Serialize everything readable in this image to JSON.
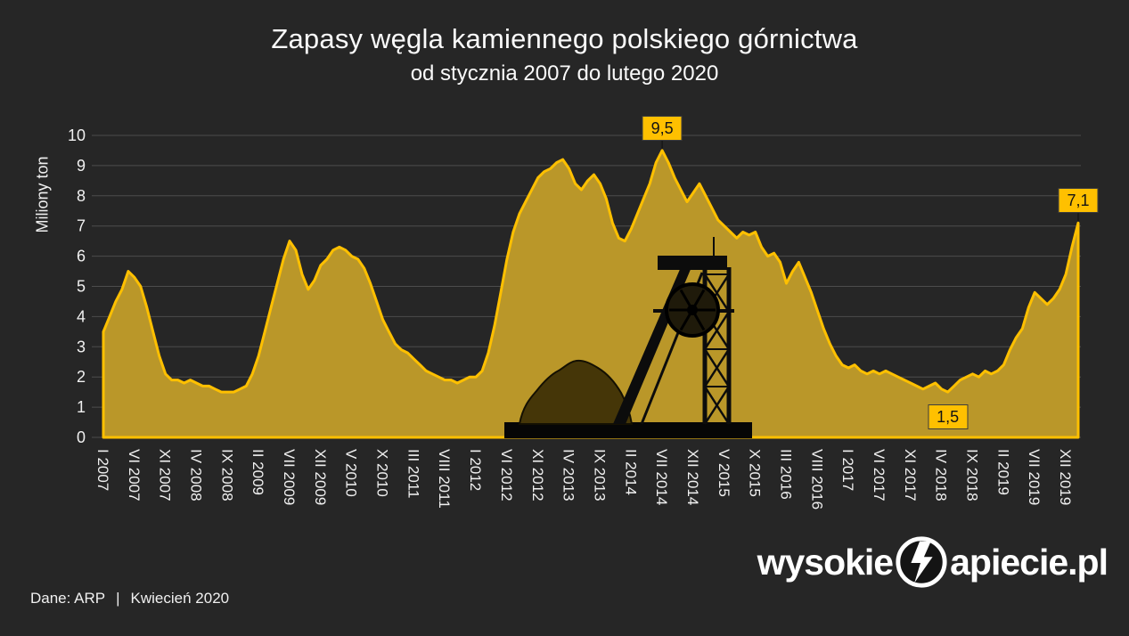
{
  "chart_data": {
    "type": "area",
    "title": "Zapasy węgla kamiennego polskiego górnictwa",
    "subtitle": "od stycznia 2007 do lutego 2020",
    "ylabel": "Miliony ton",
    "ylim": [
      0,
      10
    ],
    "y_ticks": [
      0,
      1,
      2,
      3,
      4,
      5,
      6,
      7,
      8,
      9,
      10
    ],
    "x_tick_step": 5,
    "x_tick_labels": [
      "I 2007",
      "VI 2007",
      "XI 2007",
      "IV 2008",
      "IX 2008",
      "II 2009",
      "VII 2009",
      "XII 2009",
      "V 2010",
      "X 2010",
      "III 2011",
      "VIII 2011",
      "I 2012",
      "VI 2012",
      "XI 2012",
      "IV 2013",
      "IX 2013",
      "II 2014",
      "VII 2014",
      "XII 2014",
      "V 2015",
      "X 2015",
      "III 2016",
      "VIII 2016",
      "I 2017",
      "VI 2017",
      "XI 2017",
      "IV 2018",
      "IX 2018",
      "II 2019",
      "VII 2019",
      "XII 2019"
    ],
    "values": [
      3.5,
      4.0,
      4.5,
      4.9,
      5.5,
      5.3,
      5.0,
      4.3,
      3.5,
      2.7,
      2.1,
      1.9,
      1.9,
      1.8,
      1.9,
      1.8,
      1.7,
      1.7,
      1.6,
      1.5,
      1.5,
      1.5,
      1.6,
      1.7,
      2.1,
      2.7,
      3.5,
      4.3,
      5.1,
      5.9,
      6.5,
      6.2,
      5.4,
      4.9,
      5.2,
      5.7,
      5.9,
      6.2,
      6.3,
      6.2,
      6.0,
      5.9,
      5.6,
      5.1,
      4.5,
      3.9,
      3.5,
      3.1,
      2.9,
      2.8,
      2.6,
      2.4,
      2.2,
      2.1,
      2.0,
      1.9,
      1.9,
      1.8,
      1.9,
      2.0,
      2.0,
      2.2,
      2.8,
      3.7,
      4.8,
      5.9,
      6.8,
      7.4,
      7.8,
      8.2,
      8.6,
      8.8,
      8.9,
      9.1,
      9.2,
      8.9,
      8.4,
      8.2,
      8.5,
      8.7,
      8.4,
      7.9,
      7.1,
      6.6,
      6.5,
      6.9,
      7.4,
      7.9,
      8.4,
      9.1,
      9.5,
      9.1,
      8.6,
      8.2,
      7.8,
      8.1,
      8.4,
      8.0,
      7.6,
      7.2,
      7.0,
      6.8,
      6.6,
      6.8,
      6.7,
      6.8,
      6.3,
      6.0,
      6.1,
      5.8,
      5.1,
      5.5,
      5.8,
      5.3,
      4.8,
      4.2,
      3.6,
      3.1,
      2.7,
      2.4,
      2.3,
      2.4,
      2.2,
      2.1,
      2.2,
      2.1,
      2.2,
      2.1,
      2.0,
      1.9,
      1.8,
      1.7,
      1.6,
      1.7,
      1.8,
      1.6,
      1.5,
      1.7,
      1.9,
      2.0,
      2.1,
      2.0,
      2.2,
      2.1,
      2.2,
      2.4,
      2.9,
      3.3,
      3.6,
      4.3,
      4.8,
      4.6,
      4.4,
      4.6,
      4.9,
      5.4,
      6.3,
      7.1
    ],
    "annotations": [
      {
        "label": "9,5",
        "value": 9.5,
        "index": 90,
        "placement": "above"
      },
      {
        "label": "7,1",
        "value": 7.1,
        "index": 157,
        "placement": "above"
      },
      {
        "label": "1,5",
        "value": 1.5,
        "index": 136,
        "placement": "inline"
      }
    ],
    "colors": {
      "background": "#262626",
      "area_fill": "#BA9729",
      "line": "#FFC000",
      "grid": "#4c4c4c",
      "text": "#f0f0f0",
      "label_bg": "#FFC000",
      "label_text": "#141414"
    }
  },
  "footer": {
    "source": "Dane: ARP",
    "separator": "|",
    "date": "Kwiecień 2020"
  },
  "logo": {
    "prefix": "wysokie",
    "suffix": "apiecie.pl",
    "icon": "lightning-bolt-circle-icon"
  }
}
